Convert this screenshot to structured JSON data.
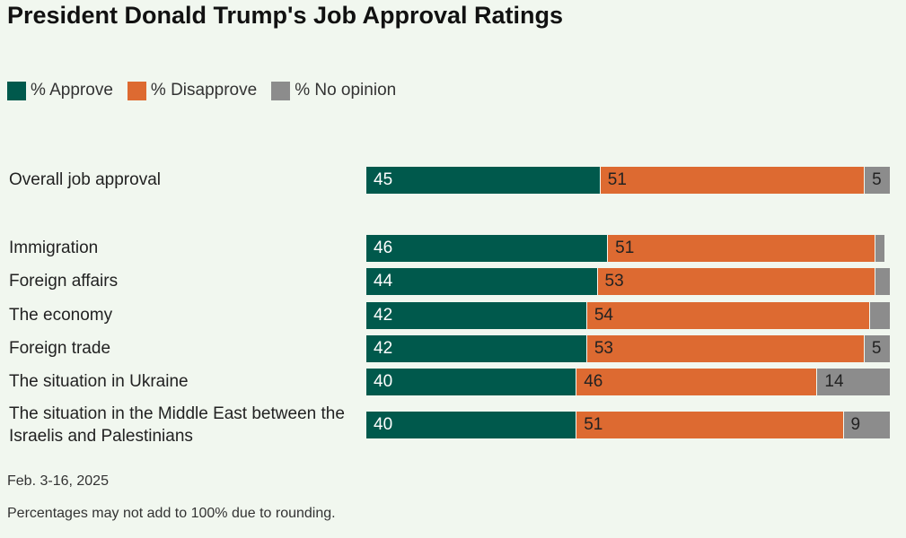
{
  "colors": {
    "approve": "#00594c",
    "disapprove": "#dd6a31",
    "no_opinion": "#8c8c8c",
    "background": "#f1f7ef"
  },
  "chart_data": {
    "type": "bar",
    "orientation": "horizontal",
    "stacked": true,
    "title": "President Donald Trump's Job Approval Ratings",
    "legend": [
      "% Approve",
      "% Disapprove",
      "% No opinion"
    ],
    "legend_position": "top-left",
    "xlim": [
      0,
      100
    ],
    "rows": [
      {
        "label": "Overall job approval",
        "approve": 45,
        "disapprove": 51,
        "no_opinion": 5,
        "show_no_opinion": true
      },
      {
        "label": "Immigration",
        "approve": 46,
        "disapprove": 51,
        "no_opinion": 2,
        "show_no_opinion": false
      },
      {
        "label": "Foreign affairs",
        "approve": 44,
        "disapprove": 53,
        "no_opinion": 3,
        "show_no_opinion": false
      },
      {
        "label": "The economy",
        "approve": 42,
        "disapprove": 54,
        "no_opinion": 4,
        "show_no_opinion": false
      },
      {
        "label": "Foreign trade",
        "approve": 42,
        "disapprove": 53,
        "no_opinion": 5,
        "show_no_opinion": true
      },
      {
        "label": "The situation in Ukraine",
        "approve": 40,
        "disapprove": 46,
        "no_opinion": 14,
        "show_no_opinion": true
      },
      {
        "label": "The situation in the Middle East between the Israelis and Palestinians",
        "approve": 40,
        "disapprove": 51,
        "no_opinion": 9,
        "show_no_opinion": true
      }
    ]
  },
  "footer": {
    "date": "Feb. 3-16, 2025",
    "note": "Percentages may not add to 100% due to rounding."
  }
}
